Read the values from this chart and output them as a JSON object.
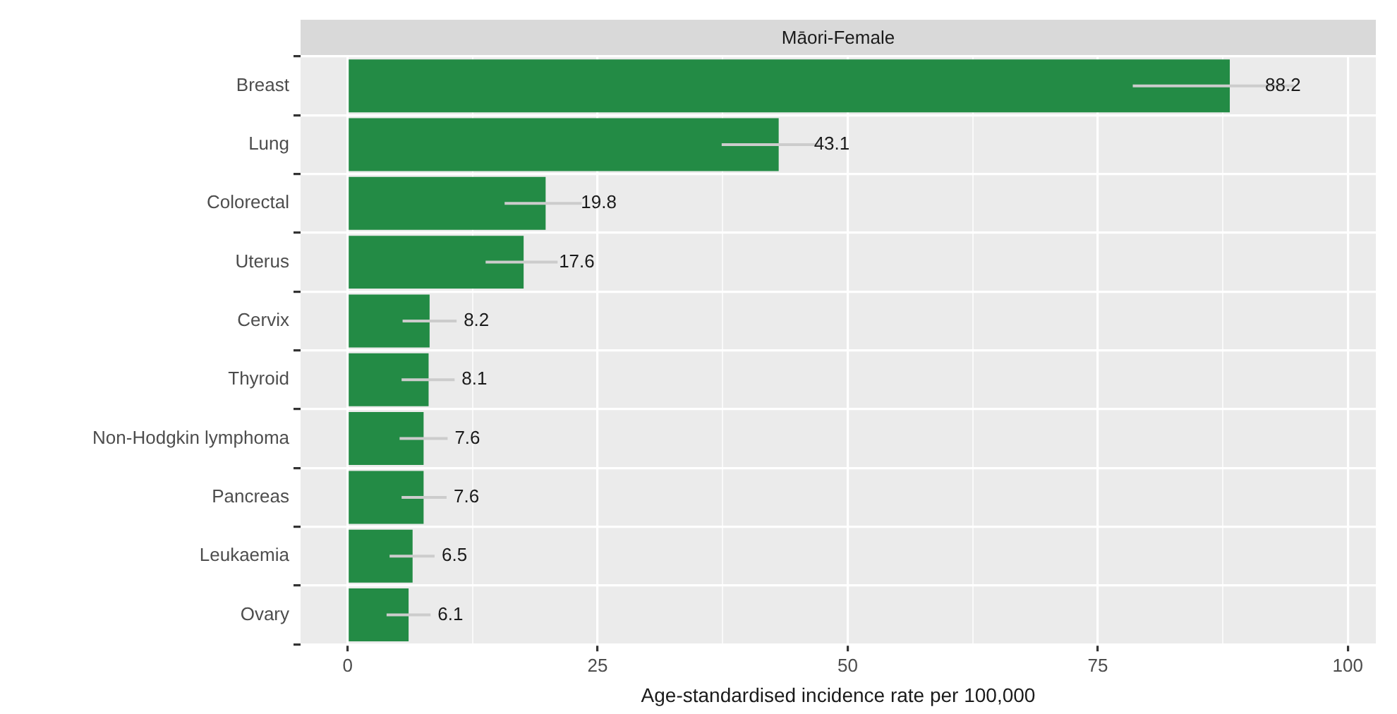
{
  "chart_data": {
    "type": "bar",
    "orientation": "horizontal",
    "title": "Māori-Female",
    "xlabel": "Age-standardised incidence rate per 100,000",
    "categories": [
      "Breast",
      "Lung",
      "Colorectal",
      "Uterus",
      "Cervix",
      "Thyroid",
      "Non-Hodgkin lymphoma",
      "Pancreas",
      "Leukaemia",
      "Ovary"
    ],
    "values": [
      88.2,
      43.1,
      19.8,
      17.6,
      8.2,
      8.1,
      7.6,
      7.6,
      6.5,
      6.1
    ],
    "errors": [
      [
        78.5,
        94.6
      ],
      [
        37.4,
        47.2
      ],
      [
        15.7,
        23.4
      ],
      [
        13.8,
        21.0
      ],
      [
        5.5,
        10.9
      ],
      [
        5.4,
        10.7
      ],
      [
        5.2,
        10.0
      ],
      [
        5.4,
        9.9
      ],
      [
        4.2,
        8.7
      ],
      [
        3.9,
        8.3
      ]
    ],
    "color": "#238b45",
    "data_labels": true,
    "grid": true,
    "legend": false,
    "xlim": [
      -4.7,
      102.8
    ],
    "xticks": [
      0,
      {
        "value": 12.5,
        "label": null
      },
      25,
      {
        "value": 37.5,
        "label": null
      },
      50,
      {
        "value": 62.5,
        "label": null
      },
      75,
      {
        "value": 87.5,
        "label": null
      },
      100
    ]
  }
}
